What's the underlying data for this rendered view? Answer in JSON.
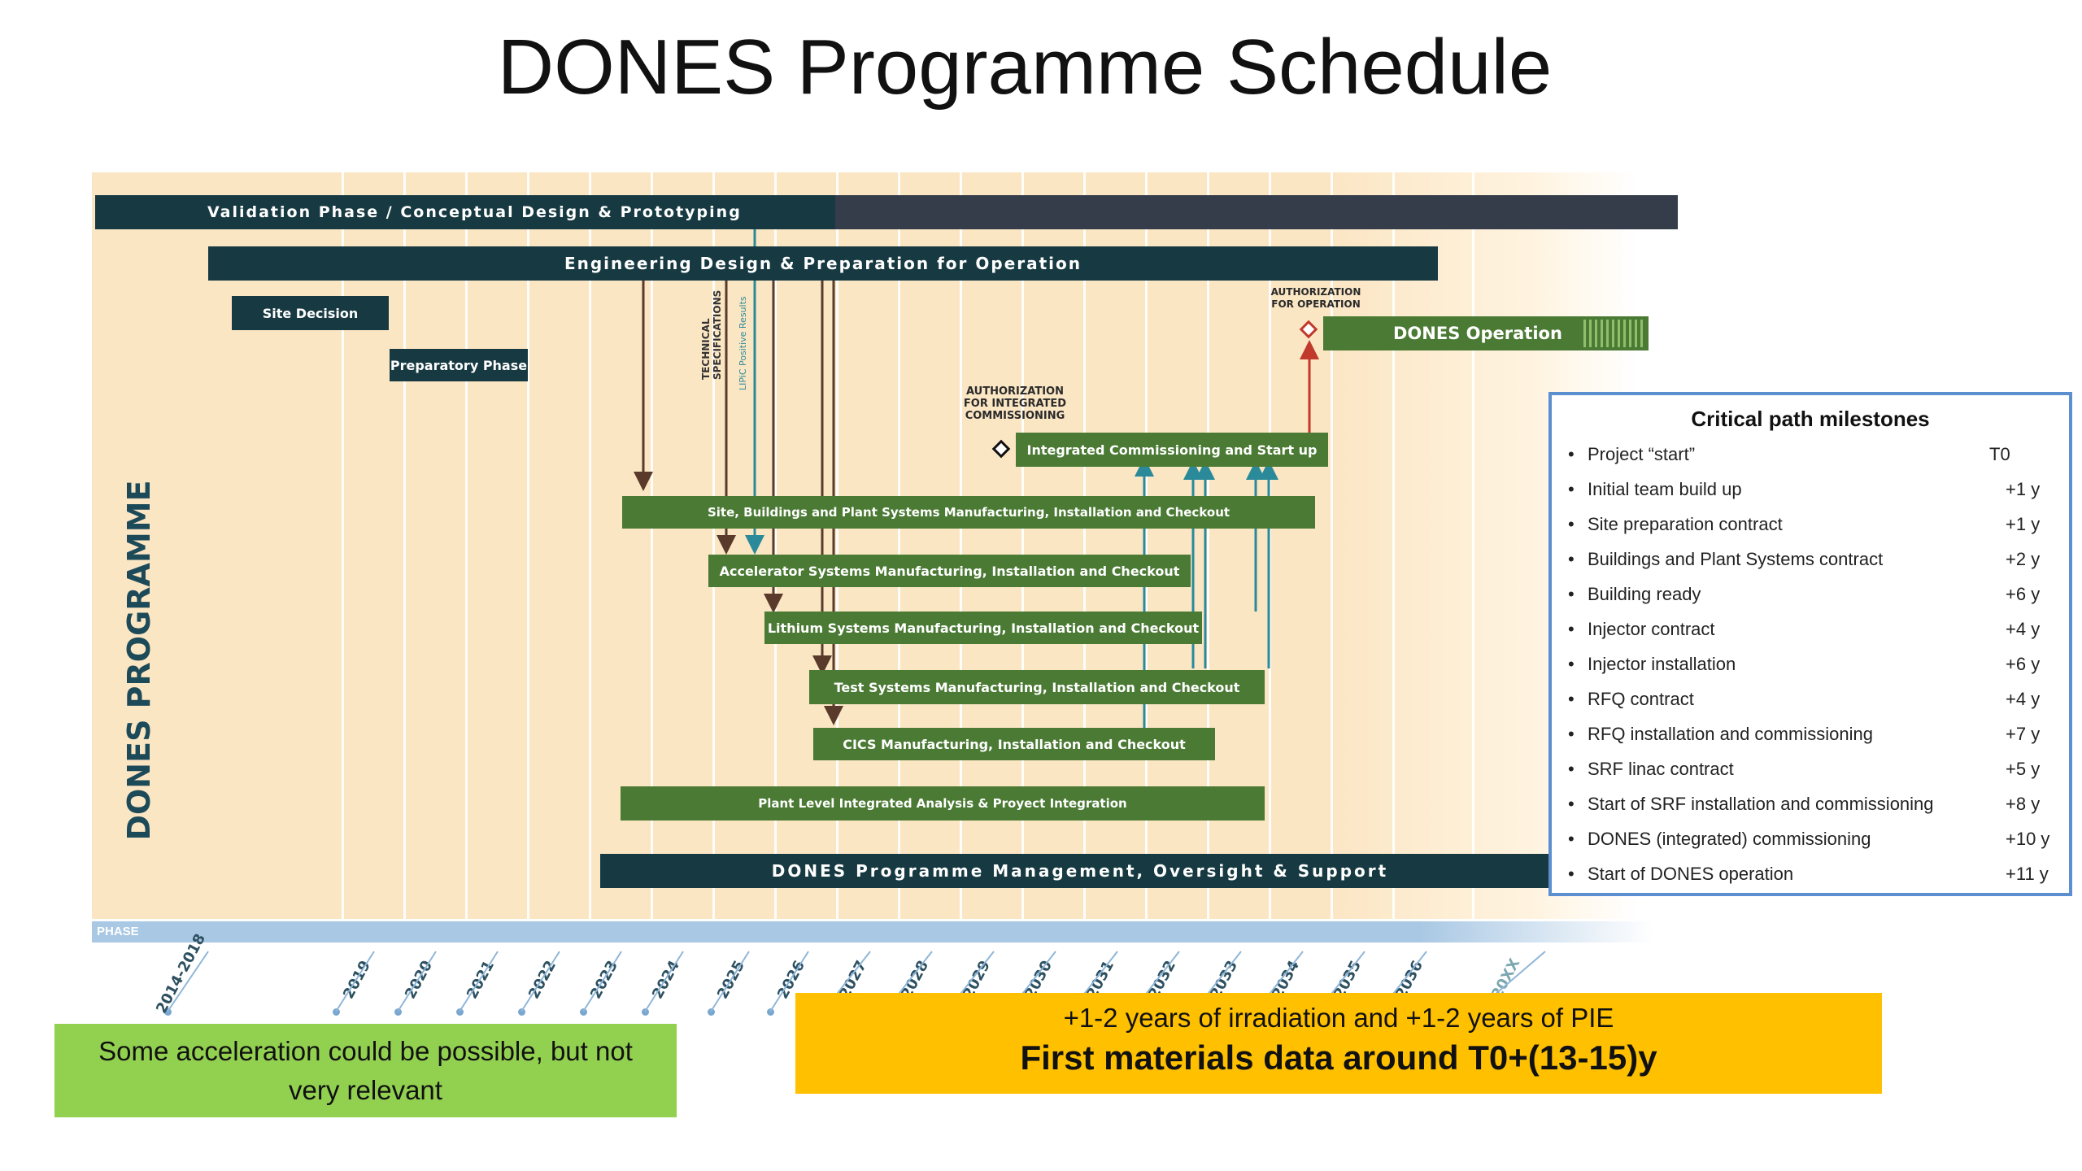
{
  "slide": {
    "title": "DONES Programme Schedule"
  },
  "diagram": {
    "side_label": "DONES PROGRAMME",
    "bars": {
      "validation": "Validation Phase / Conceptual Design & Prototyping",
      "engineering": "Engineering Design & Preparation for Operation",
      "site_decision": "Site Decision",
      "preparatory": "Preparatory Phase",
      "operation": "DONES Operation",
      "integrated_commissioning": "Integrated Commissioning and Start up",
      "site_buildings": "Site, Buildings and Plant Systems Manufacturing, Installation and Checkout",
      "accelerator": "Accelerator Systems Manufacturing, Installation and Checkout",
      "lithium": "Lithium Systems Manufacturing, Installation and Checkout",
      "test_systems": "Test Systems Manufacturing, Installation and Checkout",
      "cics": "CICS Manufacturing, Installation and Checkout",
      "plant_level": "Plant Level Integrated Analysis & Proyect Integration",
      "management": "DONES Programme Management, Oversight & Support"
    },
    "labels": {
      "authorization_operation": "AUTHORIZATION\nFOR OPERATION",
      "authorization_integrated": "AUTHORIZATION\nFOR INTEGRATED\nCOMMISSIONING",
      "technical_specifications": "TECHNICAL\nSPECIFICATIONS",
      "lipic": "LIPiC Positive Results"
    },
    "phase_label": "PHASE",
    "years": [
      "2014-2018",
      "2019",
      "2020",
      "2021",
      "2022",
      "2023",
      "2024",
      "2025",
      "2026",
      "2027",
      "2028",
      "2029",
      "2030",
      "2031",
      "2032",
      "2033",
      "2034",
      "2035",
      "2036",
      "20XX"
    ]
  },
  "milestones": {
    "title": "Critical path milestones",
    "items": [
      {
        "label": "Project “start”",
        "value": "T0"
      },
      {
        "label": "Initial team build up",
        "value": "+1 y"
      },
      {
        "label": "Site preparation contract",
        "value": "+1 y"
      },
      {
        "label": "Buildings and Plant Systems contract",
        "value": "+2 y"
      },
      {
        "label": "Building ready",
        "value": "+6 y"
      },
      {
        "label": "Injector contract",
        "value": "+4 y"
      },
      {
        "label": "Injector installation",
        "value": "+6 y"
      },
      {
        "label": "RFQ contract",
        "value": "+4 y"
      },
      {
        "label": "RFQ installation and commissioning",
        "value": "+7 y"
      },
      {
        "label": "SRF linac contract",
        "value": "+5 y"
      },
      {
        "label": "Start of SRF installation and commissioning",
        "value": "+8 y"
      },
      {
        "label": "DONES (integrated) commissioning",
        "value": "+10 y"
      },
      {
        "label": "Start of DONES operation",
        "value": "+11 y"
      }
    ]
  },
  "callouts": {
    "acceleration": "Some acceleration could be possible, but not very relevant",
    "irradiation_line1": "+1-2 years of irradiation and +1-2 years of PIE",
    "irradiation_line2": "First materials data around T0+(13-15)y"
  }
}
